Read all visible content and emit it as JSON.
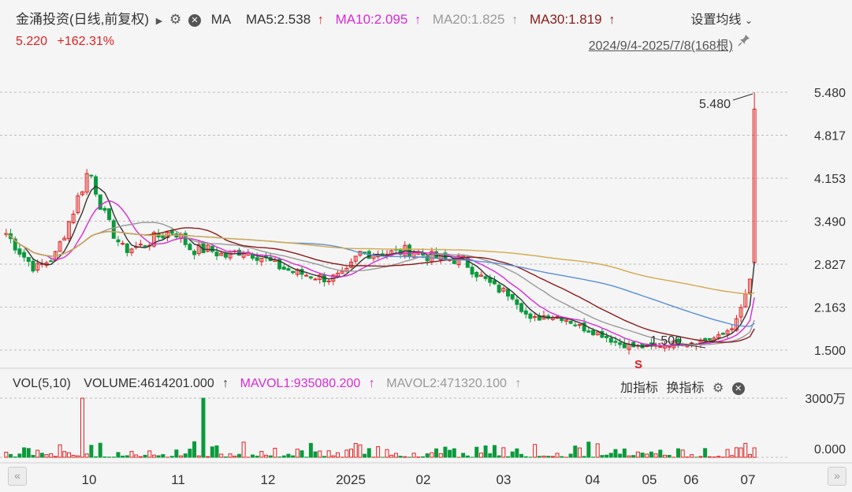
{
  "header": {
    "title": "金涌投资(日线,前复权)",
    "ma_label": "MA",
    "ma5": "MA5:2.538",
    "ma10": "MA10:2.095",
    "ma20": "MA20:1.825",
    "ma30": "MA30:1.819",
    "up_arrow": "↑",
    "settings": "设置均线",
    "range": "2024/9/4-2025/7/8(168根)"
  },
  "price": {
    "last": "5.220",
    "change_pct": "+162.31%"
  },
  "colors": {
    "up": "#e02020",
    "down": "#0a9a3c",
    "ma5": "#333333",
    "ma10": "#d62bd6",
    "ma20": "#999999",
    "ma30": "#8b1a1a",
    "ma60": "#5a8fd6",
    "ma120": "#d4a84c"
  },
  "volume_header": {
    "label": "VOL(5,10)",
    "volume": "VOLUME:4614201.000",
    "mavol1": "MAVOL1:935080.200",
    "mavol2": "MAVOL2:471320.100",
    "add_indicator": "加指标",
    "switch_indicator": "换指标"
  },
  "chart_data": {
    "type": "candlestick",
    "period": "2024/9/4-2025/7/8",
    "bar_count": 168,
    "y_ticks": [
      "5.480",
      "4.817",
      "4.153",
      "3.490",
      "2.827",
      "2.163",
      "1.500"
    ],
    "ylim": [
      1.5,
      5.48
    ],
    "x_labels": [
      "10",
      "11",
      "12",
      "2025",
      "02",
      "03",
      "04",
      "05",
      "06",
      "07"
    ],
    "annotations": {
      "high": "5.480",
      "low": "1.500",
      "marker": "S"
    },
    "vol_ticks": [
      "3000万",
      "0.000"
    ],
    "price_series": [
      {
        "date": "2024-09-04",
        "close": 3.3
      },
      {
        "date": "2024-09-10",
        "close": 3.0
      },
      {
        "date": "2024-09-16",
        "close": 2.75
      },
      {
        "date": "2024-09-24",
        "close": 2.95
      },
      {
        "date": "2024-10-01",
        "close": 3.6
      },
      {
        "date": "2024-10-08",
        "close": 4.3
      },
      {
        "date": "2024-10-15",
        "close": 3.5
      },
      {
        "date": "2024-10-22",
        "close": 3.05
      },
      {
        "date": "2024-10-29",
        "close": 3.1
      },
      {
        "date": "2024-11-05",
        "close": 3.25
      },
      {
        "date": "2024-11-12",
        "close": 3.35
      },
      {
        "date": "2024-11-19",
        "close": 3.05
      },
      {
        "date": "2024-11-26",
        "close": 3.05
      },
      {
        "date": "2024-12-03",
        "close": 2.95
      },
      {
        "date": "2024-12-10",
        "close": 3.05
      },
      {
        "date": "2024-12-17",
        "close": 2.95
      },
      {
        "date": "2024-12-24",
        "close": 2.8
      },
      {
        "date": "2024-12-31",
        "close": 2.7
      },
      {
        "date": "2025-01-07",
        "close": 2.65
      },
      {
        "date": "2025-01-14",
        "close": 2.6
      },
      {
        "date": "2025-01-21",
        "close": 2.65
      },
      {
        "date": "2025-01-27",
        "close": 3.0
      },
      {
        "date": "2025-02-10",
        "close": 3.0
      },
      {
        "date": "2025-02-17",
        "close": 3.05
      },
      {
        "date": "2025-02-24",
        "close": 2.95
      },
      {
        "date": "2025-03-03",
        "close": 2.9
      },
      {
        "date": "2025-03-10",
        "close": 2.9
      },
      {
        "date": "2025-03-17",
        "close": 2.65
      },
      {
        "date": "2025-03-24",
        "close": 2.45
      },
      {
        "date": "2025-03-31",
        "close": 2.35
      },
      {
        "date": "2025-04-07",
        "close": 1.95
      },
      {
        "date": "2025-04-14",
        "close": 2.05
      },
      {
        "date": "2025-04-21",
        "close": 2.0
      },
      {
        "date": "2025-04-28",
        "close": 1.85
      },
      {
        "date": "2025-05-06",
        "close": 1.75
      },
      {
        "date": "2025-05-13",
        "close": 1.6
      },
      {
        "date": "2025-05-20",
        "close": 1.55
      },
      {
        "date": "2025-05-27",
        "close": 1.55
      },
      {
        "date": "2025-06-03",
        "close": 1.6
      },
      {
        "date": "2025-06-10",
        "close": 1.62
      },
      {
        "date": "2025-06-17",
        "close": 1.65
      },
      {
        "date": "2025-06-24",
        "close": 1.7
      },
      {
        "date": "2025-07-01",
        "close": 1.95
      },
      {
        "date": "2025-07-07",
        "close": 2.7
      },
      {
        "date": "2025-07-08",
        "close": 5.22
      }
    ]
  }
}
